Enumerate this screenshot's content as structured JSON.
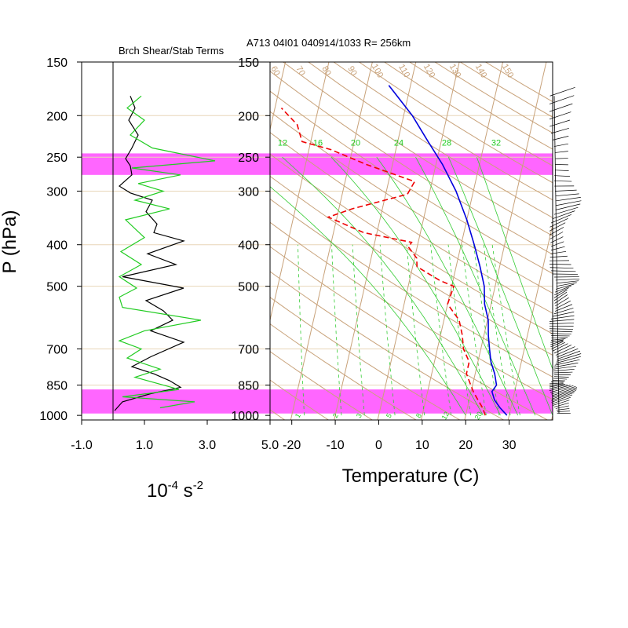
{
  "chart_data": [
    {
      "type": "line",
      "title": "Brch Shear/Stab Terms",
      "xlabel": "10",
      "xlabel_exp1": "-4",
      "xlabel_unit": " s",
      "xlabel_exp2": "-2",
      "ylabel": "P (hPa)",
      "xlim": [
        -1.0,
        5.0
      ],
      "ylim": [
        1000,
        150
      ],
      "x_ticks": [
        "-1.0",
        "1.0",
        "3.0",
        "5.0"
      ],
      "y_ticks": [
        "150",
        "200",
        "250",
        "300",
        "400",
        "500",
        "700",
        "850",
        "1000"
      ],
      "y_tick_values": [
        150,
        200,
        250,
        300,
        400,
        500,
        700,
        850,
        1000
      ],
      "highlight_bands_hPa": [
        [
          245,
          275
        ],
        [
          870,
          990
        ]
      ],
      "highlight_color": "#ff66ff",
      "series": [
        {
          "color": "#000000",
          "points": [
            [
              0.55,
              180
            ],
            [
              0.7,
              192
            ],
            [
              0.5,
              205
            ],
            [
              0.8,
              222
            ],
            [
              0.6,
              238
            ],
            [
              0.4,
              252
            ],
            [
              0.55,
              262
            ],
            [
              0.6,
              275
            ],
            [
              0.2,
              292
            ],
            [
              0.55,
              303
            ],
            [
              1.25,
              315
            ],
            [
              1.05,
              335
            ],
            [
              1.4,
              358
            ],
            [
              1.3,
              375
            ],
            [
              2.25,
              392
            ],
            [
              1.1,
              420
            ],
            [
              2.0,
              445
            ],
            [
              0.3,
              475
            ],
            [
              2.25,
              505
            ],
            [
              1.05,
              540
            ],
            [
              1.6,
              570
            ],
            [
              1.9,
              600
            ],
            [
              1.2,
              635
            ],
            [
              2.25,
              675
            ],
            [
              1.2,
              730
            ],
            [
              0.6,
              770
            ],
            [
              1.3,
              800
            ],
            [
              1.8,
              830
            ],
            [
              2.15,
              860
            ],
            [
              1.2,
              890
            ],
            [
              0.3,
              930
            ],
            [
              0.05,
              975
            ]
          ]
        },
        {
          "color": "#22cc22",
          "points": [
            [
              0.9,
              180
            ],
            [
              0.45,
              192
            ],
            [
              1.0,
              205
            ],
            [
              0.55,
              222
            ],
            [
              1.25,
              238
            ],
            [
              3.25,
              255
            ],
            [
              0.6,
              265
            ],
            [
              2.15,
              275
            ],
            [
              0.8,
              288
            ],
            [
              1.6,
              300
            ],
            [
              0.7,
              315
            ],
            [
              1.8,
              330
            ],
            [
              0.4,
              350
            ],
            [
              1.0,
              385
            ],
            [
              0.25,
              415
            ],
            [
              0.9,
              445
            ],
            [
              0.2,
              475
            ],
            [
              0.75,
              505
            ],
            [
              0.2,
              530
            ],
            [
              0.3,
              560
            ],
            [
              2.8,
              600
            ],
            [
              1.0,
              635
            ],
            [
              0.2,
              670
            ],
            [
              0.9,
              700
            ],
            [
              0.45,
              735
            ],
            [
              1.5,
              780
            ],
            [
              0.7,
              815
            ],
            [
              2.1,
              870
            ],
            [
              0.3,
              905
            ],
            [
              2.6,
              930
            ],
            [
              1.5,
              960
            ]
          ]
        }
      ]
    },
    {
      "type": "line",
      "title": "A713 04I01 040914/1033 R= 256km",
      "xlabel": "Temperature (C)",
      "ylabel": "",
      "xlim": [
        -25,
        40
      ],
      "ylim": [
        1000,
        150
      ],
      "x_ticks": [
        "-20",
        "-10",
        "0",
        "10",
        "20",
        "30"
      ],
      "x_tick_values": [
        -20,
        -10,
        0,
        10,
        20,
        30
      ],
      "y_ticks": [
        "150",
        "200",
        "250",
        "300",
        "400",
        "500",
        "700",
        "850",
        "1000"
      ],
      "skew_per_decade": 22.5,
      "mixing_ratio_labels": [
        "12",
        "16",
        "20",
        "24",
        "28",
        "32"
      ],
      "bottom_mixing_labels": [
        "1",
        "2",
        "3",
        "5",
        "8",
        "12",
        "20"
      ],
      "adiabat_labels": [
        "60",
        "70",
        "80",
        "90",
        "100",
        "110",
        "120",
        "130",
        "140",
        "150"
      ],
      "colors": {
        "dry_adiabat": "#c8a27a",
        "moist": "#33cc33",
        "temperature": "#0000dd",
        "dewpoint": "#ee0000"
      },
      "series": [
        {
          "name": "Temperature",
          "color": "#0000dd",
          "points": [
            [
              29.5,
              1000
            ],
            [
              27.5,
              960
            ],
            [
              25.8,
              920
            ],
            [
              24.8,
              880
            ],
            [
              25.5,
              850
            ],
            [
              24.5,
              800
            ],
            [
              23.0,
              750
            ],
            [
              22.0,
              700
            ],
            [
              21.0,
              650
            ],
            [
              20.2,
              600
            ],
            [
              18.5,
              550
            ],
            [
              17.5,
              500
            ],
            [
              15.5,
              450
            ],
            [
              13.0,
              400
            ],
            [
              10.0,
              350
            ],
            [
              6.0,
              300
            ],
            [
              1.5,
              260
            ],
            [
              -3.0,
              230
            ],
            [
              -8.0,
              200
            ],
            [
              -15.0,
              170
            ]
          ]
        },
        {
          "name": "Dew point",
          "color": "#ee0000",
          "points": [
            [
              24.5,
              1000
            ],
            [
              23.5,
              960
            ],
            [
              22.0,
              920
            ],
            [
              20.5,
              880
            ],
            [
              18.0,
              800
            ],
            [
              18.0,
              750
            ],
            [
              16.0,
              700
            ],
            [
              15.0,
              650
            ],
            [
              13.5,
              600
            ],
            [
              10.0,
              550
            ],
            [
              10.5,
              500
            ],
            [
              7.0,
              485
            ],
            [
              1.0,
              450
            ],
            [
              0.5,
              430
            ],
            [
              -2.0,
              405
            ],
            [
              -1.5,
              395
            ],
            [
              -13.0,
              375
            ],
            [
              -22.0,
              345
            ],
            [
              -17.0,
              330
            ],
            [
              -5.0,
              305
            ],
            [
              -4.0,
              285
            ],
            [
              -16.0,
              260
            ],
            [
              -25.0,
              240
            ],
            [
              -32.0,
              230
            ],
            [
              -34.0,
              210
            ],
            [
              -38.5,
              192
            ]
          ]
        }
      ]
    }
  ]
}
